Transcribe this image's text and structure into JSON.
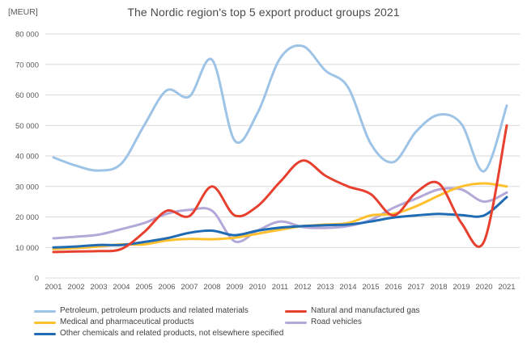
{
  "header": {
    "units_label": "[MEUR]",
    "title": "The Nordic region's top 5 export product groups 2021"
  },
  "chart_data": {
    "type": "line",
    "title": "The Nordic region's top 5 export product groups 2021",
    "unit_label": "[MEUR]",
    "smooth": true,
    "grid": "horizontal-only",
    "grid_color": "#D9D9D9",
    "ylim": [
      0,
      80000
    ],
    "ytick_labels_bottom_up": [
      "0",
      "10 000",
      "20 000",
      "30 000",
      "40 000",
      "50 000",
      "60 000",
      "70 000",
      "80 000"
    ],
    "x_labels": [
      "2001",
      "2002",
      "2003",
      "2004",
      "2005",
      "2006",
      "2007",
      "2008",
      "2009",
      "2010",
      "2011",
      "2012",
      "2013",
      "2014",
      "2015",
      "2016",
      "2017",
      "2018",
      "2019",
      "2020",
      "2021"
    ],
    "legend_position": "bottom-two-columns",
    "legend_columns": [
      [
        0,
        2,
        4
      ],
      [
        1,
        3
      ]
    ],
    "draw_order": [
      0,
      3,
      2,
      4,
      1
    ],
    "series": [
      {
        "name": "Petroleum, petroleum products and related materials",
        "color": "#9DC3E6",
        "values": [
          39500,
          36800,
          35200,
          37500,
          50000,
          61500,
          59500,
          71500,
          45000,
          54000,
          72000,
          76000,
          68000,
          62500,
          44000,
          38000,
          48000,
          53500,
          50500,
          35000,
          56500
        ]
      },
      {
        "name": "Natural and manufactured gas",
        "color": "#E8402F",
        "values": [
          8500,
          8700,
          8800,
          9500,
          15000,
          22000,
          20300,
          30000,
          20500,
          23500,
          31500,
          38500,
          33500,
          30000,
          27500,
          20500,
          28000,
          31000,
          18000,
          12000,
          50000
        ]
      },
      {
        "name": "Medical and pharmaceutical products",
        "color": "#FFC02E",
        "values": [
          9500,
          9800,
          10300,
          11000,
          11000,
          12300,
          12800,
          12700,
          13200,
          14500,
          15800,
          17000,
          17500,
          18000,
          20500,
          21000,
          23500,
          27000,
          30000,
          31000,
          30000
        ]
      },
      {
        "name": "Road vehicles",
        "color": "#B3A8D7",
        "values": [
          13000,
          13500,
          14200,
          16000,
          18000,
          21000,
          22300,
          22000,
          12000,
          15500,
          18500,
          16700,
          16400,
          17000,
          19000,
          23000,
          26000,
          29000,
          29000,
          25000,
          28000
        ]
      },
      {
        "name": "Other chemicals and related products, not elsewhere specified",
        "color": "#1F6CB4",
        "values": [
          10000,
          10300,
          10800,
          10800,
          11800,
          13000,
          14800,
          15500,
          14000,
          15500,
          16500,
          17000,
          17300,
          17500,
          18500,
          19800,
          20500,
          21000,
          20600,
          20500,
          26500
        ]
      }
    ]
  }
}
